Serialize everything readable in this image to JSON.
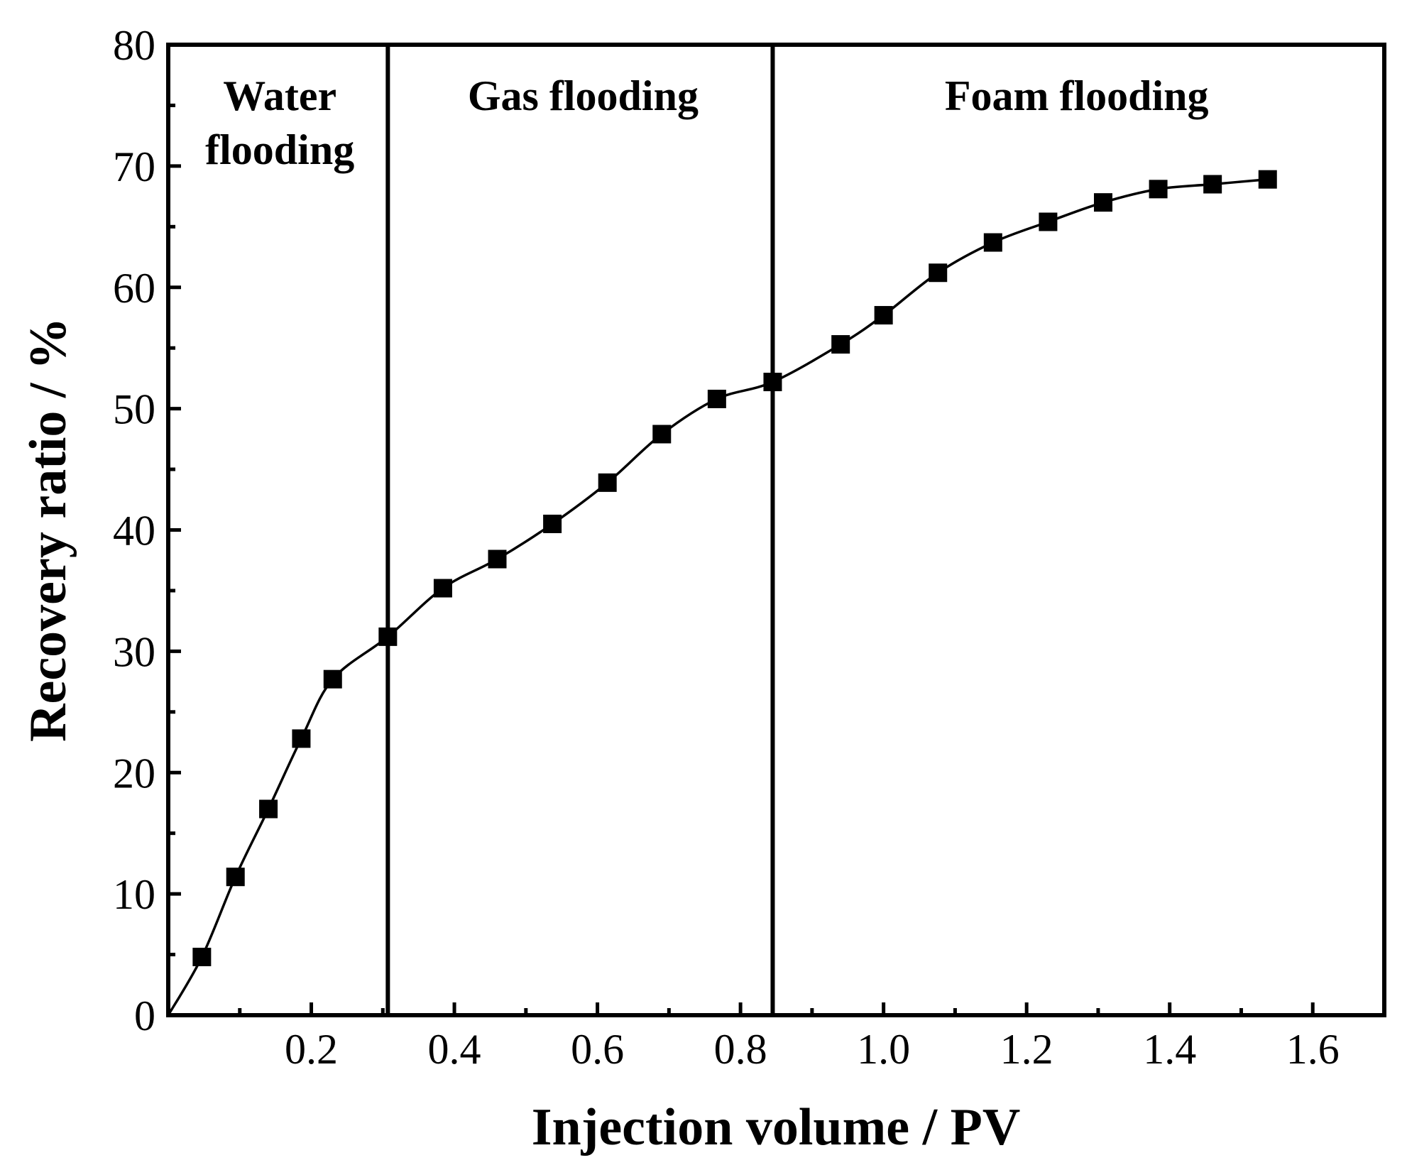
{
  "chart_data": {
    "type": "line",
    "title": "",
    "xlabel": "Injection volume / PV",
    "ylabel": "Recovery ratio / %",
    "xlim": [
      0,
      1.7
    ],
    "ylim": [
      0,
      80
    ],
    "xticks": [
      0.2,
      0.4,
      0.6,
      0.8,
      1.0,
      1.2,
      1.4,
      1.6
    ],
    "xtick_labels": [
      "0.2",
      "0.4",
      "0.6",
      "0.8",
      "1.0",
      "1.2",
      "1.4",
      "1.6"
    ],
    "yticks": [
      0,
      10,
      20,
      30,
      40,
      50,
      60,
      70,
      80
    ],
    "ytick_labels": [
      "0",
      "10",
      "20",
      "30",
      "40",
      "50",
      "60",
      "70",
      "80"
    ],
    "grid": false,
    "marker": "square",
    "series": [
      {
        "name": "Recovery ratio",
        "x": [
          0.047,
          0.094,
          0.14,
          0.186,
          0.23,
          0.307,
          0.384,
          0.46,
          0.537,
          0.614,
          0.69,
          0.767,
          0.845,
          0.94,
          1.0,
          1.076,
          1.153,
          1.23,
          1.307,
          1.384,
          1.46,
          1.537
        ],
        "y": [
          4.8,
          11.4,
          17.0,
          22.8,
          27.7,
          31.2,
          35.2,
          37.6,
          40.5,
          43.9,
          47.9,
          50.8,
          52.2,
          55.3,
          57.7,
          61.2,
          63.7,
          65.4,
          67.0,
          68.1,
          68.5,
          68.9
        ]
      }
    ],
    "dividers": [
      0.307,
      0.845
    ],
    "regions": [
      {
        "lines": [
          "Water",
          "flooding"
        ],
        "x_center": 0.156
      },
      {
        "lines": [
          "Gas flooding"
        ],
        "x_center": 0.58
      },
      {
        "lines": [
          "Foam flooding"
        ],
        "x_center": 1.27
      }
    ]
  }
}
